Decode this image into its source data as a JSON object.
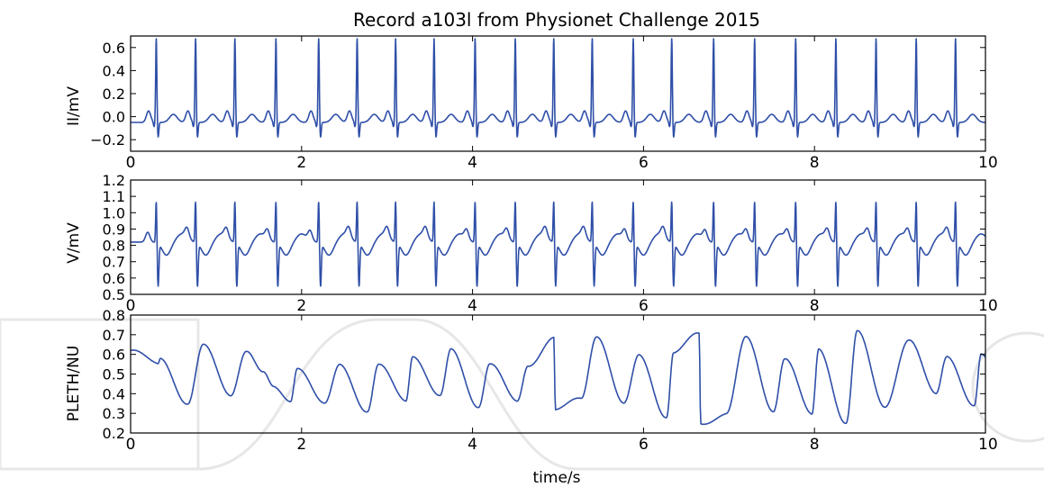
{
  "colors": {
    "trace": "#2f4fa8",
    "watermark": "#e4e4e4"
  },
  "chart_data": [
    {
      "type": "line",
      "title": "Record a103l from Physionet Challenge 2015",
      "xlabel": "",
      "ylabel": "II/mV",
      "xlim": [
        0,
        10
      ],
      "ylim": [
        -0.3,
        0.7
      ],
      "xticks": [
        "0",
        "2",
        "4",
        "6",
        "8",
        "10"
      ],
      "yticks": [
        -0.2,
        0.0,
        0.2,
        0.4,
        0.6
      ],
      "ytick_labels": [
        "−0.2",
        "0.0",
        "0.2",
        "0.4",
        "0.6"
      ],
      "beat_times": [
        0.3,
        0.76,
        1.22,
        1.7,
        2.2,
        2.65,
        3.1,
        3.55,
        4.03,
        4.5,
        4.95,
        5.4,
        5.88,
        6.33,
        6.82,
        7.3,
        7.78,
        8.25,
        8.72,
        9.19,
        9.65
      ],
      "r_peak": 0.64,
      "s_trough": -0.18,
      "baseline": -0.05
    },
    {
      "type": "line",
      "title": "",
      "xlabel": "",
      "ylabel": "V/mV",
      "xlim": [
        0,
        10
      ],
      "ylim": [
        0.5,
        1.2
      ],
      "xticks": [
        "0",
        "2",
        "4",
        "6",
        "8",
        "10"
      ],
      "yticks": [
        0.5,
        0.6,
        0.7,
        0.8,
        0.9,
        1.0,
        1.1,
        1.2
      ],
      "ytick_labels": [
        "0.5",
        "0.6",
        "0.7",
        "0.8",
        "0.9",
        "1.0",
        "1.1",
        "1.2"
      ],
      "beat_times": [
        0.3,
        0.76,
        1.22,
        1.7,
        2.2,
        2.65,
        3.1,
        3.55,
        4.03,
        4.5,
        4.95,
        5.4,
        5.88,
        6.33,
        6.82,
        7.3,
        7.78,
        8.25,
        8.72,
        9.19,
        9.65
      ],
      "r_peak": 1.08,
      "s_trough": 0.56,
      "baseline": 0.82
    },
    {
      "type": "line",
      "title": "",
      "xlabel": "time/s",
      "ylabel": "PLETH/NU",
      "xlim": [
        0,
        10
      ],
      "ylim": [
        0.2,
        0.8
      ],
      "xticks": [
        "0",
        "2",
        "4",
        "6",
        "8",
        "10"
      ],
      "yticks": [
        0.2,
        0.3,
        0.4,
        0.5,
        0.6,
        0.7,
        0.8
      ],
      "ytick_labels": [
        "0.2",
        "0.3",
        "0.4",
        "0.5",
        "0.6",
        "0.7",
        "0.8"
      ],
      "pulses": [
        {
          "t": 0.0,
          "peak": 0.62,
          "trough": 0.55
        },
        {
          "t": 0.35,
          "peak": 0.58,
          "trough": 0.35
        },
        {
          "t": 0.85,
          "peak": 0.64,
          "trough": 0.4
        },
        {
          "t": 1.35,
          "peak": 0.62,
          "trough": 0.43
        },
        {
          "t": 1.55,
          "peak": 0.5,
          "trough": 0.37
        },
        {
          "t": 1.95,
          "peak": 0.54,
          "trough": 0.34
        },
        {
          "t": 2.45,
          "peak": 0.55,
          "trough": 0.31
        },
        {
          "t": 2.9,
          "peak": 0.54,
          "trough": 0.37
        },
        {
          "t": 3.3,
          "peak": 0.6,
          "trough": 0.38
        },
        {
          "t": 3.75,
          "peak": 0.62,
          "trough": 0.34
        },
        {
          "t": 4.2,
          "peak": 0.55,
          "trough": 0.36
        },
        {
          "t": 4.65,
          "peak": 0.55,
          "trough": 0.31
        },
        {
          "t": 4.95,
          "peak": 0.68,
          "trough": 0.38
        },
        {
          "t": 5.45,
          "peak": 0.7,
          "trough": 0.34
        },
        {
          "t": 5.95,
          "peak": 0.6,
          "trough": 0.28
        },
        {
          "t": 6.35,
          "peak": 0.6,
          "trough": 0.25
        },
        {
          "t": 6.65,
          "peak": 0.71,
          "trough": 0.3
        },
        {
          "t": 7.2,
          "peak": 0.68,
          "trough": 0.32
        },
        {
          "t": 7.65,
          "peak": 0.58,
          "trough": 0.29
        },
        {
          "t": 8.05,
          "peak": 0.63,
          "trough": 0.25
        },
        {
          "t": 8.5,
          "peak": 0.71,
          "trough": 0.34
        },
        {
          "t": 9.1,
          "peak": 0.67,
          "trough": 0.4
        },
        {
          "t": 9.55,
          "peak": 0.6,
          "trough": 0.33
        },
        {
          "t": 9.95,
          "peak": 0.59,
          "trough": 0.32
        }
      ]
    }
  ]
}
